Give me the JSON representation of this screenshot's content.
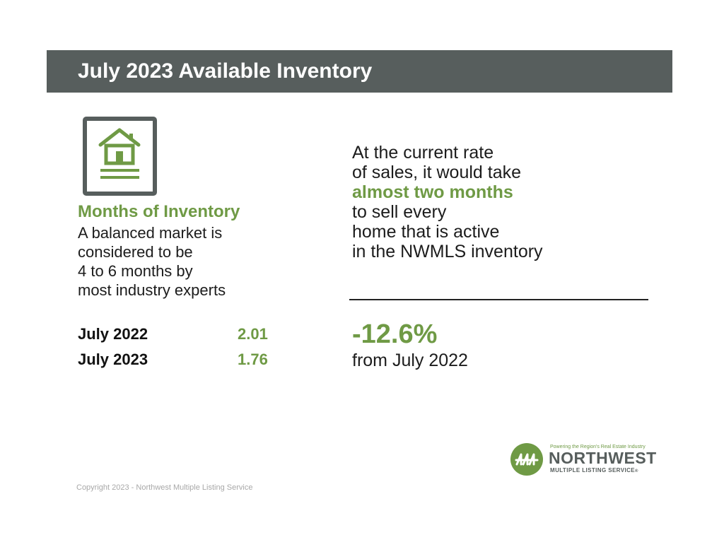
{
  "banner": {
    "title": "July 2023 Available Inventory"
  },
  "icon": {
    "name": "house-document-icon",
    "color": "#575e5d"
  },
  "months_of_inventory": {
    "heading": "Months of Inventory",
    "description_lines": [
      "A balanced market is",
      "considered to be",
      "4 to 6 months by",
      "most industry experts"
    ],
    "rows": [
      {
        "label": "July 2022",
        "value": "2.01"
      },
      {
        "label": "July 2023",
        "value": "1.76"
      }
    ]
  },
  "summary": {
    "lines": [
      "At the current rate",
      "of sales, it would take",
      "almost two months",
      "to sell every",
      "home that is active",
      "in the NWMLS inventory"
    ],
    "change_value": "-12.6%",
    "change_caption": "from July 2022"
  },
  "logo": {
    "tagline": "Powering the Region's Real Estate Industry",
    "name": "NORTHWEST",
    "sub": "MULTIPLE LISTING SERVICE",
    "trademark": "®",
    "icon": "nwmls-logo-icon"
  },
  "footer": {
    "copyright": "Copyright 2023 - Northwest Multiple Listing Service"
  },
  "colors": {
    "accent": "#6f9a45",
    "banner": "#575e5d",
    "text": "#1c1c1c"
  }
}
